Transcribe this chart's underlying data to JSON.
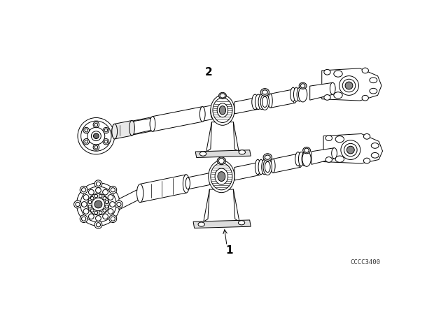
{
  "background_color": "#ffffff",
  "label_1_text": "1",
  "label_2_text": "2",
  "watermark_text": "CCCC3400",
  "watermark_fontsize": 6.5,
  "label_fontsize": 11,
  "line_color": "#000000",
  "lw": 0.7,
  "fig_width": 6.4,
  "fig_height": 4.48,
  "dpi": 100
}
